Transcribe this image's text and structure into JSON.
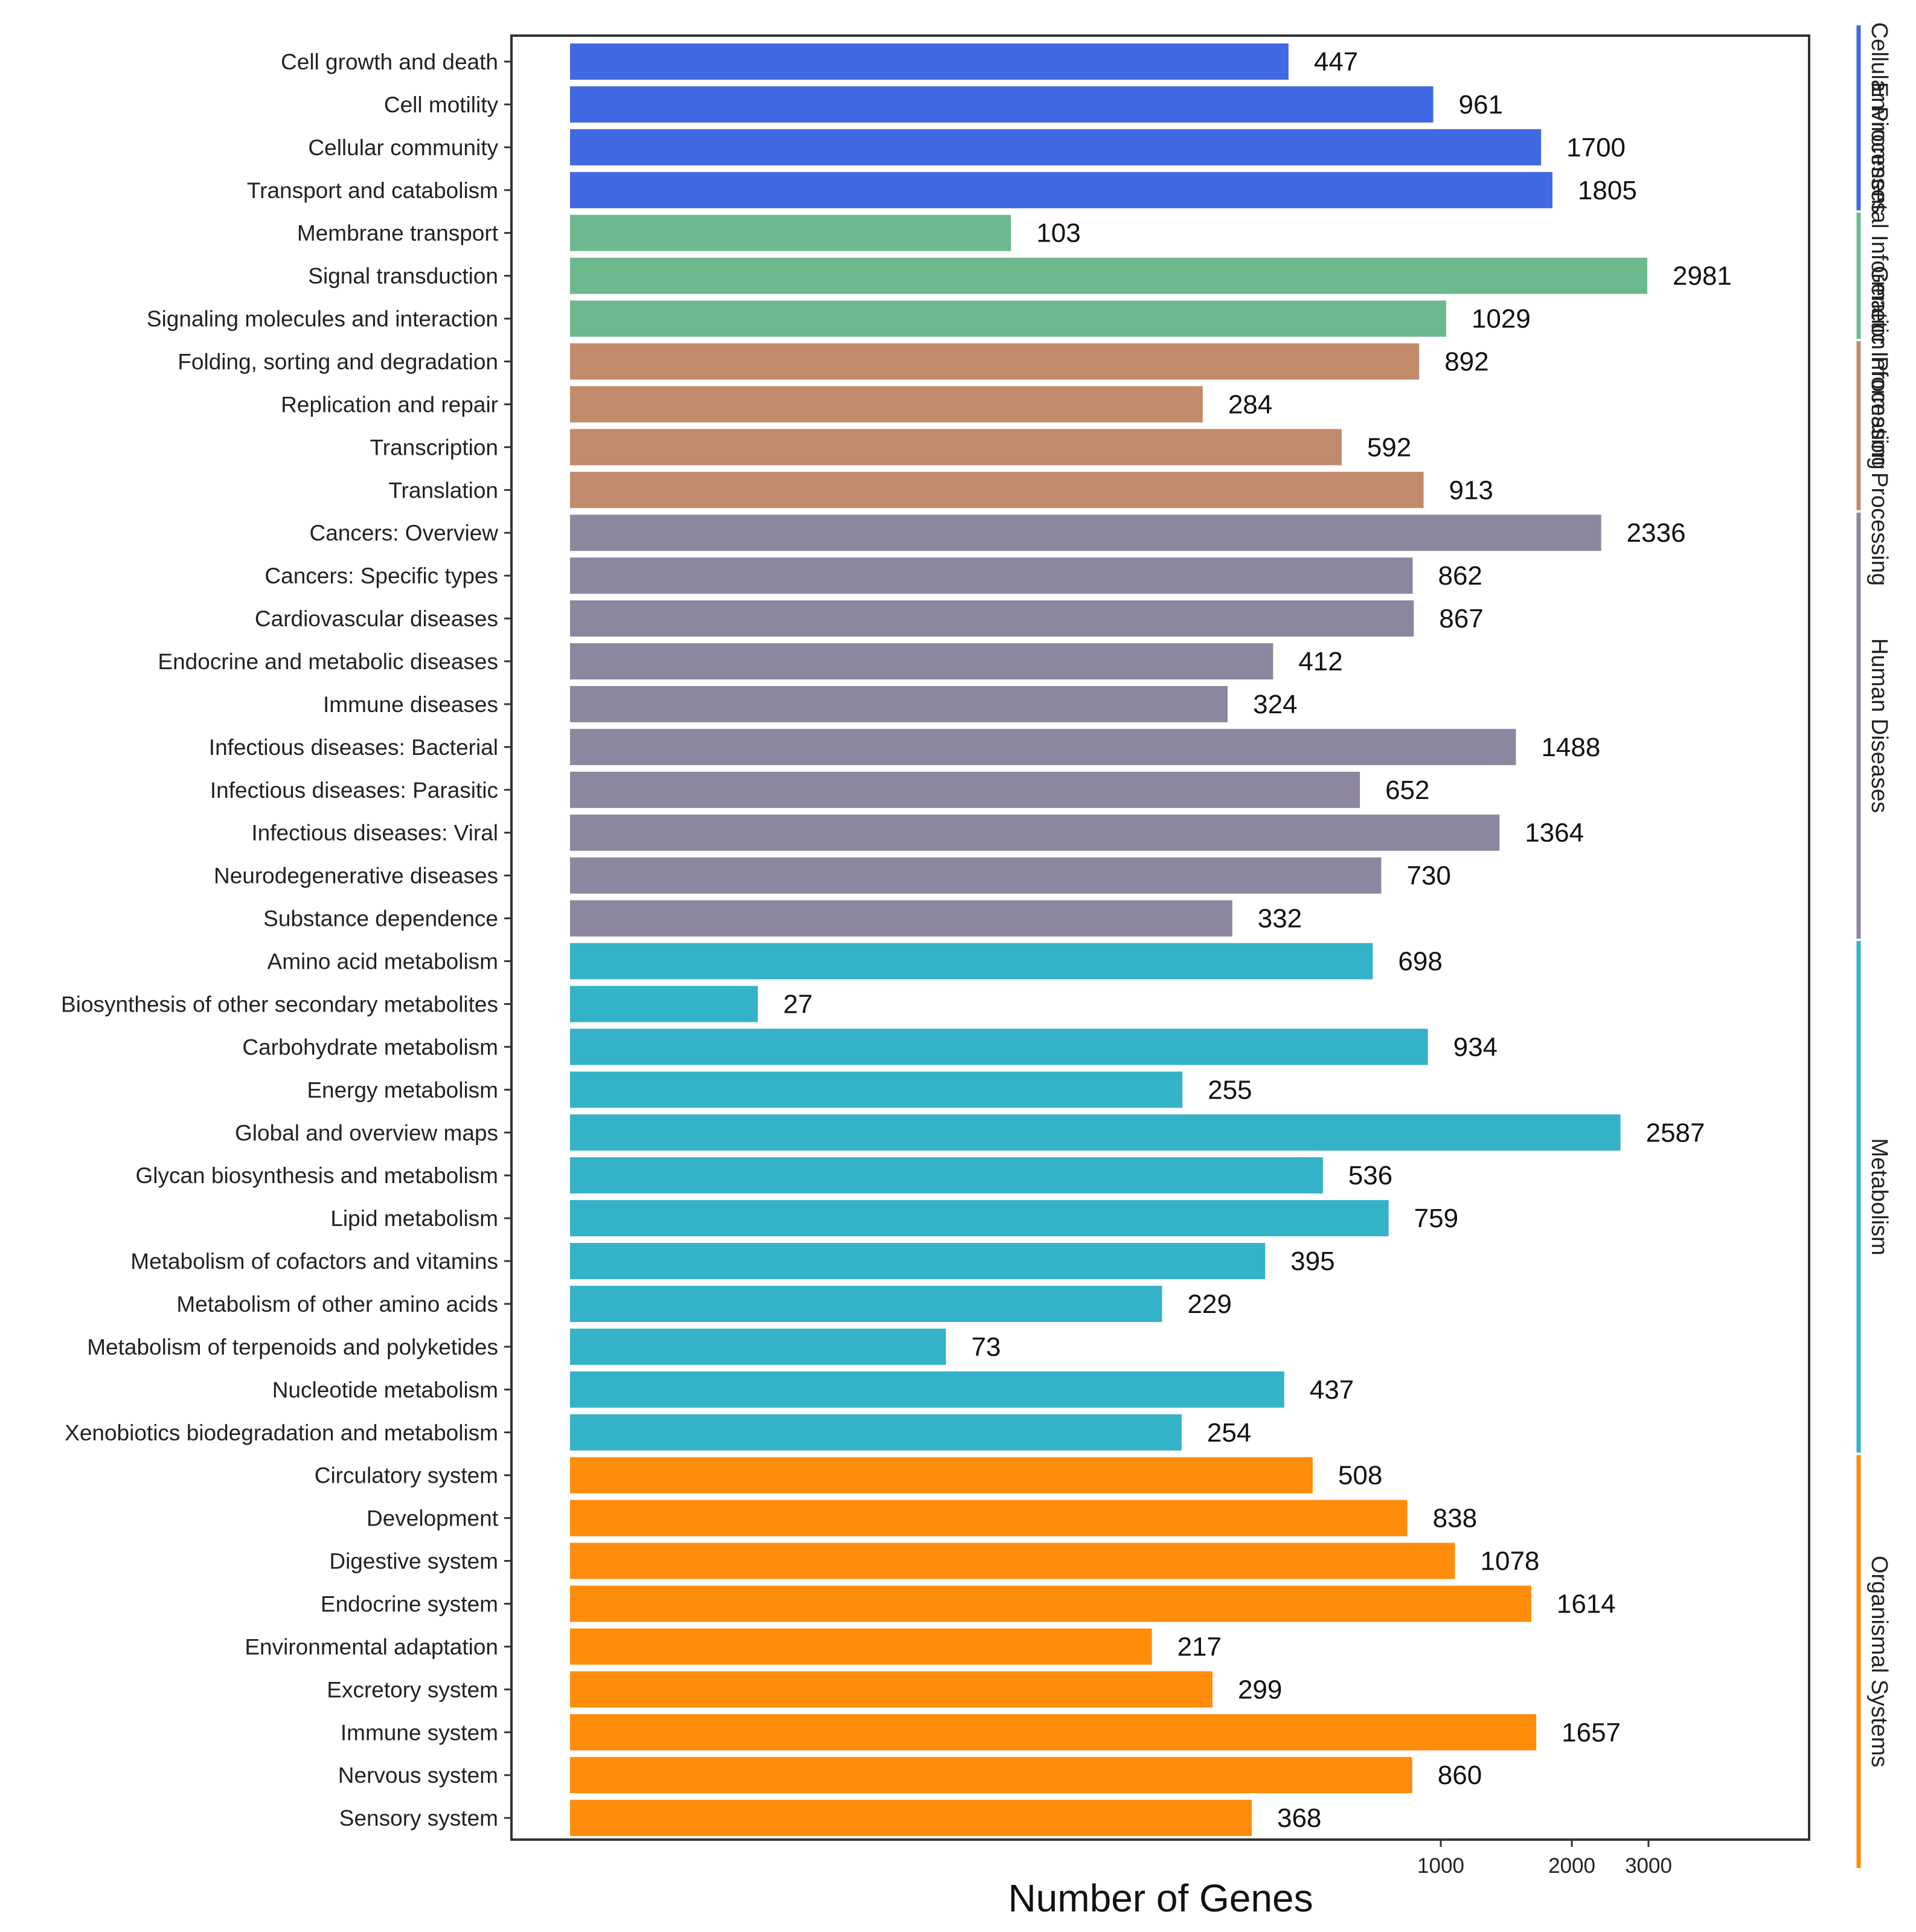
{
  "chart_data": {
    "type": "bar",
    "orientation": "horizontal",
    "title": "",
    "xlabel": "Number of Genes",
    "ylabel": "",
    "x_scale": "log10",
    "xlim": [
      10,
      6000
    ],
    "x_ticks": [
      1000,
      2000,
      3000
    ],
    "x_tick_labels": [
      "1000",
      "2000",
      "3000"
    ],
    "grid": false,
    "legend": "right-side colored strips",
    "groups": [
      {
        "name": "Cellular Processes",
        "color": "#4169E1"
      },
      {
        "name": "Environmental Information Processing",
        "color": "#6DB98E"
      },
      {
        "name": "Genetic Information Processing",
        "color": "#C18A6A"
      },
      {
        "name": "Human Diseases",
        "color": "#8D869F"
      },
      {
        "name": "Metabolism",
        "color": "#33B2C8"
      },
      {
        "name": "Organismal Systems",
        "color": "#FF8C0A"
      }
    ],
    "categories": [
      "Cell growth and death",
      "Cell motility",
      "Cellular community",
      "Transport and catabolism",
      "Membrane transport",
      "Signal transduction",
      "Signaling molecules and interaction",
      "Folding, sorting and degradation",
      "Replication and repair",
      "Transcription",
      "Translation",
      "Cancers: Overview",
      "Cancers: Specific types",
      "Cardiovascular diseases",
      "Endocrine and metabolic diseases",
      "Immune diseases",
      "Infectious diseases: Bacterial",
      "Infectious diseases: Parasitic",
      "Infectious diseases: Viral",
      "Neurodegenerative diseases",
      "Substance dependence",
      "Amino acid metabolism",
      "Biosynthesis of other secondary metabolites",
      "Carbohydrate metabolism",
      "Energy metabolism",
      "Global and overview maps",
      "Glycan biosynthesis and metabolism",
      "Lipid metabolism",
      "Metabolism of cofactors and vitamins",
      "Metabolism of other amino acids",
      "Metabolism of terpenoids and polyketides",
      "Nucleotide metabolism",
      "Xenobiotics biodegradation and metabolism",
      "Circulatory system",
      "Development",
      "Digestive system",
      "Endocrine system",
      "Environmental adaptation",
      "Excretory system",
      "Immune system",
      "Nervous system",
      "Sensory system"
    ],
    "values": [
      447,
      961,
      1700,
      1805,
      103,
      2981,
      1029,
      892,
      284,
      592,
      913,
      2336,
      862,
      867,
      412,
      324,
      1488,
      652,
      1364,
      730,
      332,
      698,
      27,
      934,
      255,
      2587,
      536,
      759,
      395,
      229,
      73,
      437,
      254,
      508,
      838,
      1078,
      1614,
      217,
      299,
      1657,
      860,
      368
    ],
    "value_labels": [
      "447",
      "961",
      "1700",
      "1805",
      "103",
      "2981",
      "1029",
      "892",
      "284",
      "592",
      "913",
      "2336",
      "862",
      "867",
      "412",
      "324",
      "1488",
      "652",
      "1364",
      "730",
      "332",
      "698",
      "27",
      "934",
      "255",
      "2587",
      "536",
      "759",
      "395",
      "229",
      "73",
      "437",
      "254",
      "508",
      "838",
      "1078",
      "1614",
      "217",
      "299",
      "1657",
      "860",
      "368"
    ],
    "category_group_index": [
      0,
      0,
      0,
      0,
      1,
      1,
      1,
      2,
      2,
      2,
      2,
      3,
      3,
      3,
      3,
      3,
      3,
      3,
      3,
      3,
      3,
      4,
      4,
      4,
      4,
      4,
      4,
      4,
      4,
      4,
      4,
      4,
      4,
      5,
      5,
      5,
      5,
      5,
      5,
      5,
      5,
      5
    ]
  }
}
